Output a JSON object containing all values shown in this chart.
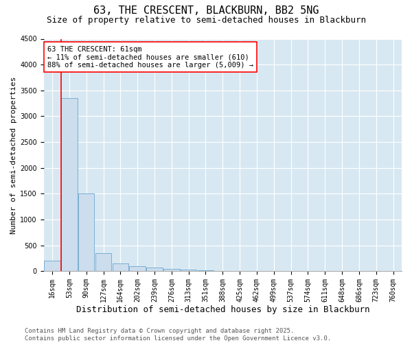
{
  "title1": "63, THE CRESCENT, BLACKBURN, BB2 5NG",
  "title2": "Size of property relative to semi-detached houses in Blackburn",
  "xlabel": "Distribution of semi-detached houses by size in Blackburn",
  "ylabel": "Number of semi-detached properties",
  "categories": [
    "16sqm",
    "53sqm",
    "90sqm",
    "127sqm",
    "164sqm",
    "202sqm",
    "239sqm",
    "276sqm",
    "313sqm",
    "351sqm",
    "388sqm",
    "425sqm",
    "462sqm",
    "499sqm",
    "537sqm",
    "574sqm",
    "611sqm",
    "648sqm",
    "686sqm",
    "723sqm",
    "760sqm"
  ],
  "values": [
    200,
    3350,
    1500,
    350,
    150,
    100,
    75,
    50,
    30,
    15,
    8,
    3,
    1,
    0,
    0,
    0,
    0,
    0,
    0,
    0,
    0
  ],
  "bar_color": "#ccdded",
  "bar_edge_color": "#7aafd4",
  "bar_edge_width": 0.7,
  "red_line_bar_index": 1,
  "ylim": [
    0,
    4500
  ],
  "yticks": [
    0,
    500,
    1000,
    1500,
    2000,
    2500,
    3000,
    3500,
    4000,
    4500
  ],
  "background_color": "#d8e8f2",
  "annotation_text": "63 THE CRESCENT: 61sqm\n← 11% of semi-detached houses are smaller (610)\n88% of semi-detached houses are larger (5,009) →",
  "footer_text": "Contains HM Land Registry data © Crown copyright and database right 2025.\nContains public sector information licensed under the Open Government Licence v3.0.",
  "title1_fontsize": 11,
  "title2_fontsize": 9,
  "xlabel_fontsize": 9,
  "ylabel_fontsize": 8,
  "footer_fontsize": 6.5,
  "annotation_fontsize": 7.5,
  "tick_fontsize": 7
}
